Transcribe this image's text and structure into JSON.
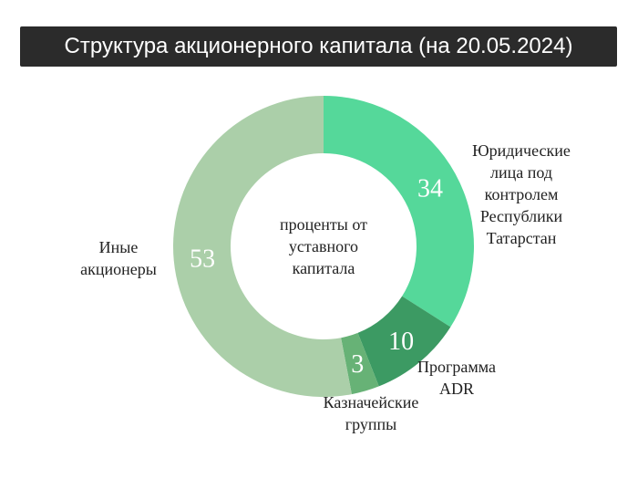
{
  "title": "Структура акционерного капитала (на 20.05.2024)",
  "chart_data": {
    "type": "pie",
    "center_label": [
      "проценты от",
      "уставного",
      "капитала"
    ],
    "slices": [
      {
        "label": [
          "Юридические",
          "лица под",
          "контролем",
          "Республики",
          "Татарстан"
        ],
        "value": 34,
        "color": "#55d89a"
      },
      {
        "label": [
          "Программа",
          "ADR"
        ],
        "value": 10,
        "color": "#3c9a63"
      },
      {
        "label": [
          "Казначейские",
          "группы"
        ],
        "value": 3,
        "color": "#67b276"
      },
      {
        "label": [
          "Иные",
          "акционеры"
        ],
        "value": 53,
        "color": "#abcfa9"
      }
    ]
  }
}
